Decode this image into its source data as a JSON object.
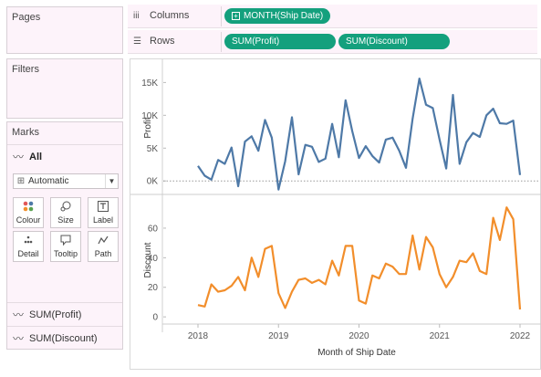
{
  "left_panel": {
    "pages_title": "Pages",
    "filters_title": "Filters",
    "marks_title": "Marks",
    "all_label": "All",
    "mark_type": "Automatic",
    "buttons": [
      {
        "label": "Colour",
        "icon": "colour-icon"
      },
      {
        "label": "Size",
        "icon": "size-icon"
      },
      {
        "label": "Label",
        "icon": "label-icon"
      },
      {
        "label": "Detail",
        "icon": "detail-icon"
      },
      {
        "label": "Tooltip",
        "icon": "tooltip-icon"
      },
      {
        "label": "Path",
        "icon": "path-icon"
      }
    ],
    "measure_rows": [
      "SUM(Profit)",
      "SUM(Discount)"
    ]
  },
  "shelves": {
    "columns_label": "Columns",
    "rows_label": "Rows",
    "columns_pills": [
      "MONTH(Ship Date)"
    ],
    "rows_pills": [
      "SUM(Profit)",
      "SUM(Discount)"
    ],
    "pill_color": "#14a07d"
  },
  "chart_data": [
    {
      "type": "line",
      "ylabel": "Profit",
      "color": "#4e79a7",
      "yticks": [
        0,
        5000,
        10000,
        15000
      ],
      "ytick_labels": [
        "0K",
        "5K",
        "10K",
        "15K"
      ],
      "ylim": [
        -1500,
        17000
      ],
      "zero_line": true,
      "values": [
        2300,
        800,
        200,
        3200,
        2600,
        5100,
        -800,
        6000,
        6800,
        4600,
        9300,
        6600,
        -1300,
        3000,
        9700,
        1000,
        5500,
        5200,
        2900,
        3400,
        8700,
        3600,
        12300,
        7600,
        3500,
        5300,
        3800,
        2800,
        6300,
        6600,
        4600,
        2000,
        9500,
        15600,
        11600,
        11100,
        6300,
        1900,
        13100,
        2600,
        5900,
        7300,
        6700,
        10000,
        11000,
        8800,
        8700,
        9200,
        900
      ]
    },
    {
      "type": "line",
      "ylabel": "Discount",
      "color": "#f28e2b",
      "yticks": [
        0,
        20,
        40,
        60
      ],
      "ytick_labels": [
        "0",
        "20",
        "40",
        "60"
      ],
      "ylim": [
        -3,
        76
      ],
      "values": [
        8,
        7,
        22,
        17,
        18,
        21,
        27,
        18,
        40,
        27,
        46,
        48,
        16,
        6,
        17,
        25,
        26,
        23,
        25,
        22,
        38,
        28,
        48,
        48,
        11,
        9,
        28,
        26,
        36,
        34,
        29,
        29,
        55,
        32,
        54,
        47,
        29,
        20,
        27,
        38,
        37,
        43,
        31,
        29,
        67,
        52,
        74,
        66,
        5
      ]
    }
  ],
  "x_axis": {
    "title": "Month of Ship Date",
    "tick_labels": [
      "2018",
      "2019",
      "2020",
      "2021",
      "2022"
    ]
  }
}
